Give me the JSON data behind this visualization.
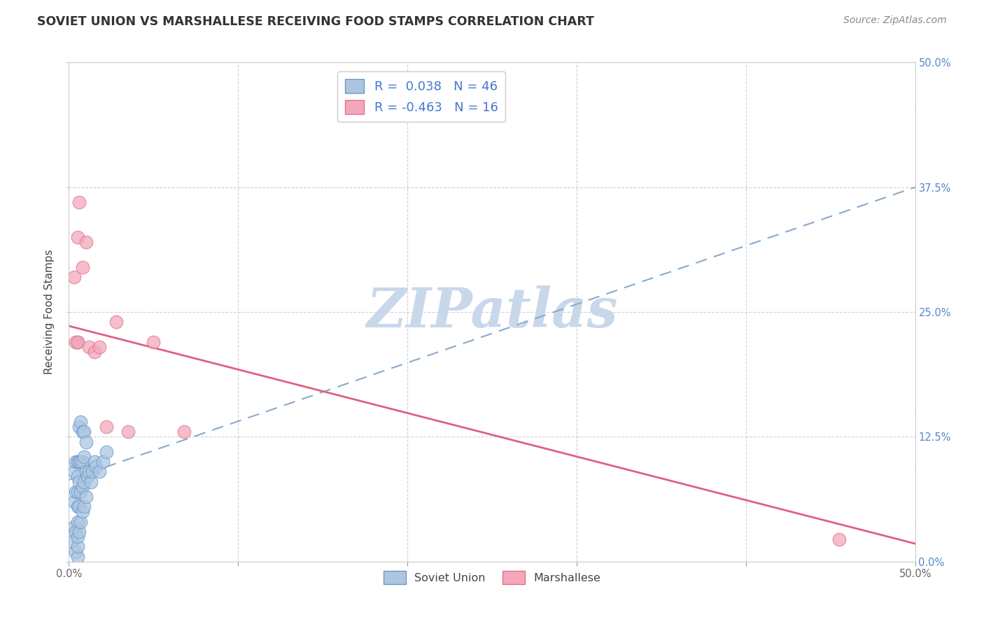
{
  "title": "SOVIET UNION VS MARSHALLESE RECEIVING FOOD STAMPS CORRELATION CHART",
  "source": "Source: ZipAtlas.com",
  "ylabel": "Receiving Food Stamps",
  "xlim": [
    0.0,
    0.5
  ],
  "ylim": [
    0.0,
    0.5
  ],
  "soviet_R": 0.038,
  "soviet_N": 46,
  "marshallese_R": -0.463,
  "marshallese_N": 16,
  "soviet_color": "#adc6e0",
  "marshallese_color": "#f4a7b9",
  "soviet_edge_color": "#6699cc",
  "marshallese_edge_color": "#e07090",
  "soviet_line_color": "#88aacc",
  "marshallese_line_color": "#e06080",
  "watermark": "ZIPatlas",
  "watermark_color": "#c8d8ea",
  "soviet_x": [
    0.002,
    0.003,
    0.003,
    0.003,
    0.004,
    0.004,
    0.004,
    0.004,
    0.005,
    0.005,
    0.005,
    0.005,
    0.005,
    0.005,
    0.005,
    0.005,
    0.005,
    0.006,
    0.006,
    0.006,
    0.006,
    0.006,
    0.007,
    0.007,
    0.007,
    0.007,
    0.008,
    0.008,
    0.008,
    0.008,
    0.009,
    0.009,
    0.009,
    0.009,
    0.01,
    0.01,
    0.01,
    0.011,
    0.012,
    0.013,
    0.014,
    0.015,
    0.016,
    0.018,
    0.02,
    0.022
  ],
  "soviet_y": [
    0.02,
    0.035,
    0.06,
    0.09,
    0.01,
    0.03,
    0.07,
    0.1,
    0.005,
    0.015,
    0.025,
    0.04,
    0.055,
    0.07,
    0.085,
    0.1,
    0.22,
    0.03,
    0.055,
    0.08,
    0.1,
    0.135,
    0.04,
    0.07,
    0.1,
    0.14,
    0.05,
    0.075,
    0.1,
    0.13,
    0.055,
    0.08,
    0.105,
    0.13,
    0.065,
    0.09,
    0.12,
    0.085,
    0.09,
    0.08,
    0.09,
    0.1,
    0.095,
    0.09,
    0.1,
    0.11
  ],
  "marshallese_x": [
    0.003,
    0.004,
    0.005,
    0.005,
    0.006,
    0.008,
    0.01,
    0.012,
    0.015,
    0.018,
    0.022,
    0.028,
    0.035,
    0.05,
    0.068,
    0.455
  ],
  "marshallese_y": [
    0.285,
    0.22,
    0.22,
    0.325,
    0.36,
    0.295,
    0.32,
    0.215,
    0.21,
    0.215,
    0.135,
    0.24,
    0.13,
    0.22,
    0.13,
    0.022
  ],
  "soviet_line_x0": 0.0,
  "soviet_line_y0": 0.082,
  "soviet_line_x1": 0.5,
  "soviet_line_y1": 0.375,
  "marsh_line_x0": 0.0,
  "marsh_line_y0": 0.236,
  "marsh_line_x1": 0.5,
  "marsh_line_y1": 0.018
}
